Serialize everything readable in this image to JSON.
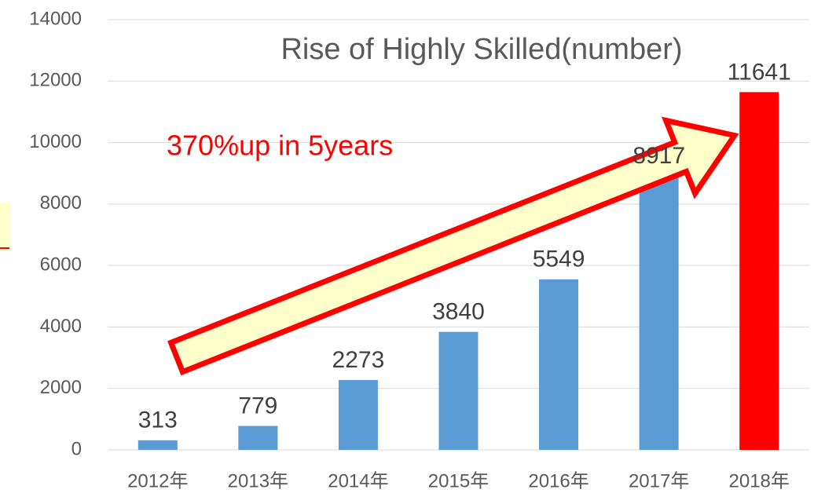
{
  "chart_data": {
    "type": "bar",
    "title": "Rise of Highly Skilled(number)",
    "annotation": "370%up in 5years",
    "categories": [
      "2012年",
      "2013年",
      "2014年",
      "2015年",
      "2016年",
      "2017年",
      "2018年"
    ],
    "values": [
      313,
      779,
      2273,
      3840,
      5549,
      8917,
      11641
    ],
    "colors": [
      "#5b9bd5",
      "#5b9bd5",
      "#5b9bd5",
      "#5b9bd5",
      "#5b9bd5",
      "#5b9bd5",
      "#ff0000"
    ],
    "ylim": [
      0,
      14000
    ],
    "yticks": [
      0,
      2000,
      4000,
      6000,
      8000,
      10000,
      12000,
      14000
    ],
    "grid": true
  }
}
